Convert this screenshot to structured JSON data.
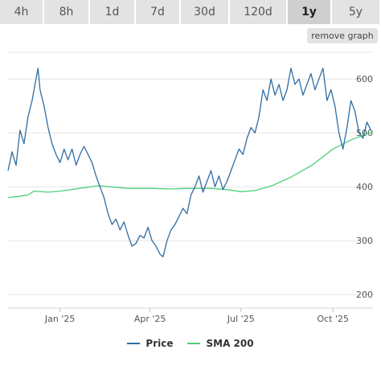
{
  "tabs": [
    {
      "label": "4h",
      "active": false
    },
    {
      "label": "8h",
      "active": false
    },
    {
      "label": "1d",
      "active": false
    },
    {
      "label": "7d",
      "active": false
    },
    {
      "label": "30d",
      "active": false
    },
    {
      "label": "120d",
      "active": false
    },
    {
      "label": "1y",
      "active": true
    },
    {
      "label": "5y",
      "active": false
    }
  ],
  "remove_graph_label": "remove graph",
  "legend": {
    "price_label": "Price",
    "sma_label": "SMA 200"
  },
  "colors": {
    "price": "#2f6da3",
    "sma": "#4ccf7a",
    "grid": "#e6e6e6",
    "axis_text": "#555555",
    "tab_bg": "#e3e3e3",
    "tab_active_bg": "#cfcfcf"
  },
  "chart_data": {
    "type": "line",
    "x_ticks": [
      {
        "label": "Jan '25",
        "x": "2025-01-01"
      },
      {
        "label": "Apr '25",
        "x": "2025-04-01"
      },
      {
        "label": "Jul '25",
        "x": "2025-07-01"
      },
      {
        "label": "Oct '25",
        "x": "2025-10-01"
      }
    ],
    "xlim": [
      "2024-11-10",
      "2025-11-10"
    ],
    "y_ticks": [
      200,
      300,
      400,
      500,
      600
    ],
    "ylim": [
      175,
      660
    ],
    "grid": true,
    "legend_position": "bottom",
    "series": [
      {
        "name": "Price",
        "color": "#2f6da3",
        "points": [
          [
            "2024-11-10",
            430
          ],
          [
            "2024-11-14",
            465
          ],
          [
            "2024-11-18",
            440
          ],
          [
            "2024-11-22",
            505
          ],
          [
            "2024-11-26",
            480
          ],
          [
            "2024-11-30",
            530
          ],
          [
            "2024-12-04",
            560
          ],
          [
            "2024-12-08",
            600
          ],
          [
            "2024-12-10",
            620
          ],
          [
            "2024-12-12",
            580
          ],
          [
            "2024-12-16",
            550
          ],
          [
            "2024-12-20",
            510
          ],
          [
            "2024-12-24",
            480
          ],
          [
            "2024-12-28",
            460
          ],
          [
            "2025-01-01",
            445
          ],
          [
            "2025-01-05",
            470
          ],
          [
            "2025-01-09",
            450
          ],
          [
            "2025-01-13",
            470
          ],
          [
            "2025-01-17",
            440
          ],
          [
            "2025-01-21",
            460
          ],
          [
            "2025-01-25",
            475
          ],
          [
            "2025-01-29",
            460
          ],
          [
            "2025-02-02",
            445
          ],
          [
            "2025-02-06",
            420
          ],
          [
            "2025-02-10",
            400
          ],
          [
            "2025-02-14",
            380
          ],
          [
            "2025-02-18",
            350
          ],
          [
            "2025-02-22",
            330
          ],
          [
            "2025-02-26",
            340
          ],
          [
            "2025-03-02",
            320
          ],
          [
            "2025-03-06",
            335
          ],
          [
            "2025-03-10",
            310
          ],
          [
            "2025-03-14",
            290
          ],
          [
            "2025-03-18",
            295
          ],
          [
            "2025-03-22",
            310
          ],
          [
            "2025-03-26",
            305
          ],
          [
            "2025-03-30",
            325
          ],
          [
            "2025-04-03",
            300
          ],
          [
            "2025-04-07",
            290
          ],
          [
            "2025-04-11",
            275
          ],
          [
            "2025-04-14",
            270
          ],
          [
            "2025-04-18",
            300
          ],
          [
            "2025-04-22",
            320
          ],
          [
            "2025-04-26",
            330
          ],
          [
            "2025-04-30",
            345
          ],
          [
            "2025-05-04",
            360
          ],
          [
            "2025-05-08",
            350
          ],
          [
            "2025-05-12",
            385
          ],
          [
            "2025-05-16",
            400
          ],
          [
            "2025-05-20",
            420
          ],
          [
            "2025-05-24",
            390
          ],
          [
            "2025-05-28",
            410
          ],
          [
            "2025-06-01",
            430
          ],
          [
            "2025-06-05",
            400
          ],
          [
            "2025-06-09",
            420
          ],
          [
            "2025-06-13",
            395
          ],
          [
            "2025-06-17",
            410
          ],
          [
            "2025-06-21",
            430
          ],
          [
            "2025-06-25",
            450
          ],
          [
            "2025-06-29",
            470
          ],
          [
            "2025-07-03",
            460
          ],
          [
            "2025-07-07",
            490
          ],
          [
            "2025-07-11",
            510
          ],
          [
            "2025-07-15",
            500
          ],
          [
            "2025-07-19",
            530
          ],
          [
            "2025-07-23",
            580
          ],
          [
            "2025-07-27",
            560
          ],
          [
            "2025-07-31",
            600
          ],
          [
            "2025-08-04",
            570
          ],
          [
            "2025-08-08",
            590
          ],
          [
            "2025-08-12",
            560
          ],
          [
            "2025-08-16",
            580
          ],
          [
            "2025-08-20",
            620
          ],
          [
            "2025-08-24",
            590
          ],
          [
            "2025-08-28",
            600
          ],
          [
            "2025-09-01",
            570
          ],
          [
            "2025-09-05",
            590
          ],
          [
            "2025-09-09",
            610
          ],
          [
            "2025-09-13",
            580
          ],
          [
            "2025-09-17",
            600
          ],
          [
            "2025-09-21",
            620
          ],
          [
            "2025-09-25",
            560
          ],
          [
            "2025-09-29",
            580
          ],
          [
            "2025-10-03",
            550
          ],
          [
            "2025-10-07",
            500
          ],
          [
            "2025-10-11",
            470
          ],
          [
            "2025-10-15",
            510
          ],
          [
            "2025-10-19",
            560
          ],
          [
            "2025-10-23",
            540
          ],
          [
            "2025-10-27",
            500
          ],
          [
            "2025-10-31",
            490
          ],
          [
            "2025-11-04",
            520
          ],
          [
            "2025-11-08",
            505
          ]
        ]
      },
      {
        "name": "SMA 200",
        "color": "#4ccf7a",
        "points": [
          [
            "2024-11-10",
            380
          ],
          [
            "2024-11-20",
            382
          ],
          [
            "2024-11-30",
            385
          ],
          [
            "2024-12-06",
            392
          ],
          [
            "2024-12-20",
            390
          ],
          [
            "2025-01-01",
            392
          ],
          [
            "2025-01-20",
            397
          ],
          [
            "2025-02-08",
            402
          ],
          [
            "2025-02-20",
            400
          ],
          [
            "2025-03-10",
            397
          ],
          [
            "2025-04-01",
            397
          ],
          [
            "2025-04-20",
            396
          ],
          [
            "2025-05-10",
            397
          ],
          [
            "2025-06-01",
            397
          ],
          [
            "2025-06-20",
            394
          ],
          [
            "2025-07-01",
            391
          ],
          [
            "2025-07-15",
            393
          ],
          [
            "2025-08-01",
            402
          ],
          [
            "2025-08-20",
            418
          ],
          [
            "2025-09-10",
            440
          ],
          [
            "2025-10-01",
            470
          ],
          [
            "2025-10-20",
            488
          ],
          [
            "2025-11-10",
            502
          ]
        ]
      }
    ]
  }
}
